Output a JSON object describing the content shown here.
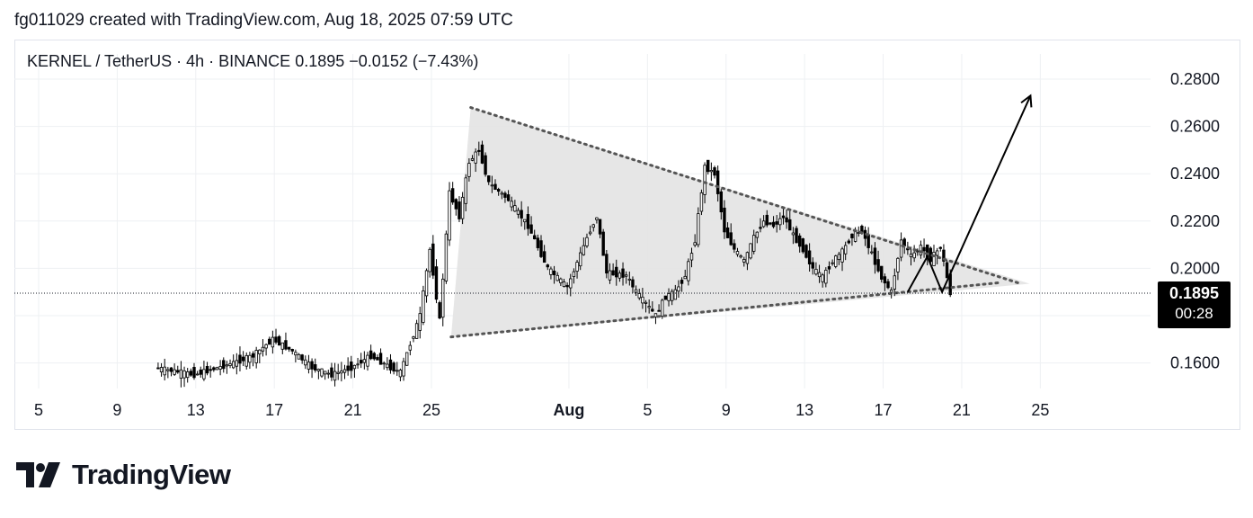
{
  "caption": "fg011029 created with TradingView.com, Aug 18, 2025 07:59 UTC",
  "header": {
    "symbol": "KERNEL / TetherUS",
    "interval": "4h",
    "exchange": "BINANCE",
    "last": "0.1895",
    "change": "−0.0152",
    "change_pct": "(−7.43%)",
    "separator": "·"
  },
  "price_tag": {
    "price": "0.1895",
    "countdown": "00:28",
    "bg": "#000000"
  },
  "brand": {
    "name": "TradingView"
  },
  "colors": {
    "candle": "#000000",
    "pattern_fill": "#e3e3e3",
    "trend_line": "#555555",
    "grid": "#eef0f3"
  },
  "chart_data": {
    "type": "candlestick",
    "title": "KERNEL / TetherUS · 4h · BINANCE",
    "y_axis": {
      "ticks": [
        "0.2800",
        "0.2600",
        "0.2400",
        "0.2200",
        "0.2000",
        "0.1600"
      ],
      "range": [
        0.15,
        0.29
      ],
      "side": "right"
    },
    "x_axis": {
      "ticks": [
        {
          "label": "5",
          "date": "2025-07-05"
        },
        {
          "label": "9",
          "date": "2025-07-09"
        },
        {
          "label": "13",
          "date": "2025-07-13"
        },
        {
          "label": "17",
          "date": "2025-07-17"
        },
        {
          "label": "21",
          "date": "2025-07-21"
        },
        {
          "label": "25",
          "date": "2025-07-25"
        },
        {
          "label": "Aug",
          "date": "2025-08-01",
          "bold": true
        },
        {
          "label": "5",
          "date": "2025-08-05"
        },
        {
          "label": "9",
          "date": "2025-08-09"
        },
        {
          "label": "13",
          "date": "2025-08-13"
        },
        {
          "label": "17",
          "date": "2025-08-17"
        },
        {
          "label": "21",
          "date": "2025-08-21"
        },
        {
          "label": "25",
          "date": "2025-08-25"
        }
      ],
      "range": [
        "2025-07-04",
        "2025-08-29"
      ]
    },
    "grid": true,
    "current_price": 0.1895,
    "price_path": [
      [
        "2025-07-11",
        0.158
      ],
      [
        "2025-07-13",
        0.155
      ],
      [
        "2025-07-15",
        0.16
      ],
      [
        "2025-07-16",
        0.163
      ],
      [
        "2025-07-17",
        0.17
      ],
      [
        "2025-07-18",
        0.165
      ],
      [
        "2025-07-19",
        0.158
      ],
      [
        "2025-07-20",
        0.155
      ],
      [
        "2025-07-21",
        0.158
      ],
      [
        "2025-07-22",
        0.163
      ],
      [
        "2025-07-23",
        0.158
      ],
      [
        "2025-07-23T12",
        0.156
      ],
      [
        "2025-07-24",
        0.168
      ],
      [
        "2025-07-24T12",
        0.18
      ],
      [
        "2025-07-25",
        0.208
      ],
      [
        "2025-07-25T12",
        0.178
      ],
      [
        "2025-07-26",
        0.232
      ],
      [
        "2025-07-26T12",
        0.222
      ],
      [
        "2025-07-27",
        0.245
      ],
      [
        "2025-07-27T12",
        0.25
      ],
      [
        "2025-07-28",
        0.236
      ],
      [
        "2025-07-29",
        0.229
      ],
      [
        "2025-07-30",
        0.218
      ],
      [
        "2025-07-31",
        0.2
      ],
      [
        "2025-08-01",
        0.192
      ],
      [
        "2025-08-02",
        0.213
      ],
      [
        "2025-08-02T12",
        0.222
      ],
      [
        "2025-08-03",
        0.198
      ],
      [
        "2025-08-04",
        0.197
      ],
      [
        "2025-08-04T12",
        0.19
      ],
      [
        "2025-08-05",
        0.185
      ],
      [
        "2025-08-05T12",
        0.18
      ],
      [
        "2025-08-06",
        0.188
      ],
      [
        "2025-08-06T12",
        0.19
      ],
      [
        "2025-08-07",
        0.197
      ],
      [
        "2025-08-07T12",
        0.212
      ],
      [
        "2025-08-08",
        0.243
      ],
      [
        "2025-08-08T12",
        0.24
      ],
      [
        "2025-08-09",
        0.216
      ],
      [
        "2025-08-09T12",
        0.208
      ],
      [
        "2025-08-10",
        0.203
      ],
      [
        "2025-08-10T12",
        0.213
      ],
      [
        "2025-08-11",
        0.22
      ],
      [
        "2025-08-11T12",
        0.218
      ],
      [
        "2025-08-12",
        0.222
      ],
      [
        "2025-08-12T12",
        0.214
      ],
      [
        "2025-08-13",
        0.208
      ],
      [
        "2025-08-13T12",
        0.2
      ],
      [
        "2025-08-14",
        0.196
      ],
      [
        "2025-08-14T12",
        0.203
      ],
      [
        "2025-08-15",
        0.207
      ],
      [
        "2025-08-15T12",
        0.214
      ],
      [
        "2025-08-16",
        0.216
      ],
      [
        "2025-08-16T12",
        0.206
      ],
      [
        "2025-08-17",
        0.196
      ],
      [
        "2025-08-17T12",
        0.19
      ],
      [
        "2025-08-18",
        0.212
      ],
      [
        "2025-08-18T12",
        0.205
      ],
      [
        "2025-08-19",
        0.209
      ],
      [
        "2025-08-19T12",
        0.204
      ],
      [
        "2025-08-20",
        0.209
      ],
      [
        "2025-08-20T12",
        0.1895
      ]
    ],
    "annotations": {
      "triangle": {
        "upper": [
          [
            "2025-07-27",
            0.268
          ],
          [
            "2025-08-24",
            0.195
          ]
        ],
        "lower": [
          [
            "2025-07-26",
            0.171
          ],
          [
            "2025-08-23",
            0.194
          ]
        ],
        "style": "dotted",
        "fill": "#e3e3e3"
      },
      "projection": [
        [
          "2025-08-21",
          0.19
        ],
        [
          "2025-08-22",
          0.205
        ],
        [
          "2025-08-23",
          0.19
        ],
        [
          "2025-08-27",
          0.273
        ]
      ],
      "price_line": 0.1895
    }
  }
}
